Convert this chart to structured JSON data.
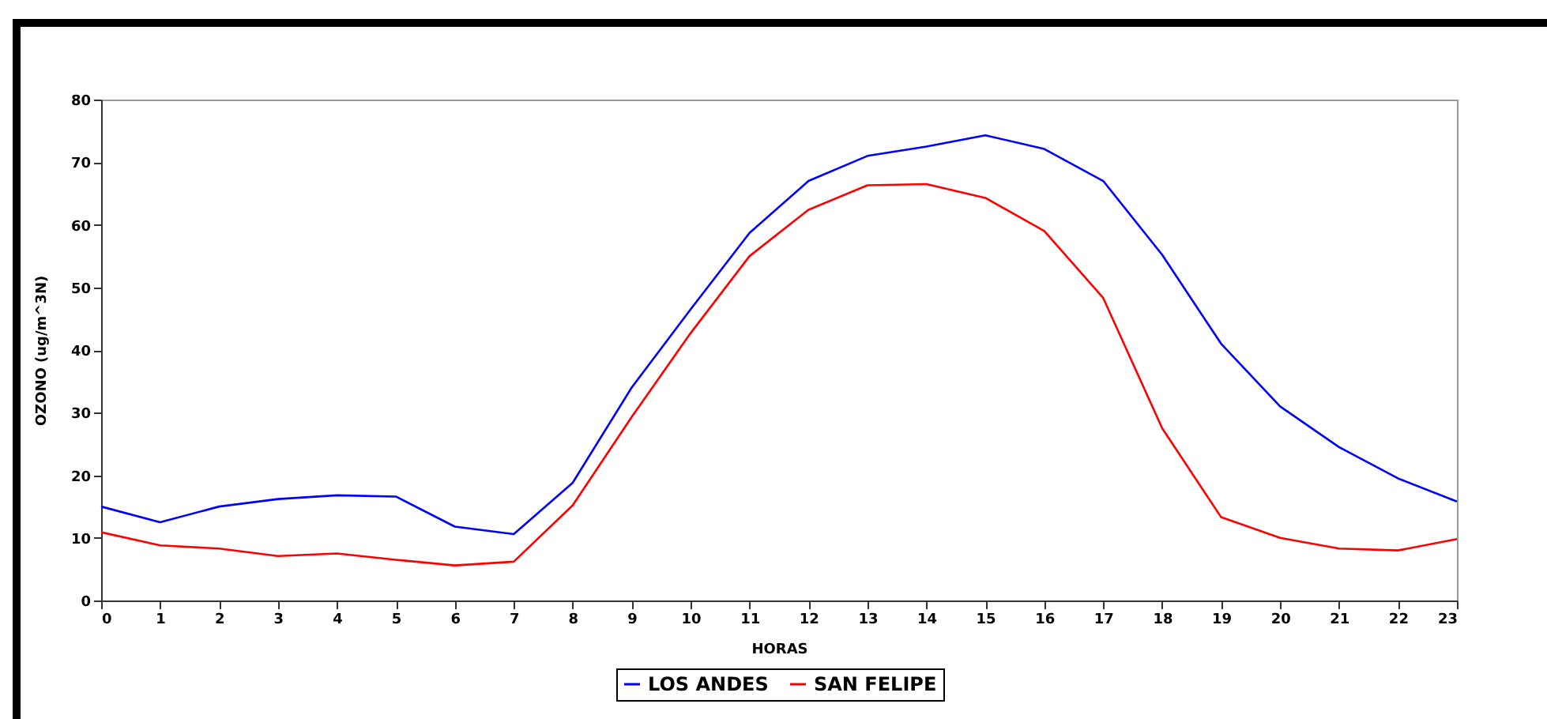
{
  "chart_data": {
    "type": "line",
    "xlabel": "HORAS",
    "ylabel": "OZONO  (ug/m^3N)",
    "x": [
      0,
      1,
      2,
      3,
      4,
      5,
      6,
      7,
      8,
      9,
      10,
      11,
      12,
      13,
      14,
      15,
      16,
      17,
      18,
      19,
      20,
      21,
      22,
      23
    ],
    "series": [
      {
        "name": "LOS ANDES",
        "color": "#0000ff",
        "values": [
          15,
          12.5,
          15,
          16.2,
          16.8,
          16.6,
          11.8,
          10.6,
          18.8,
          34,
          46.5,
          58.7,
          67,
          71,
          72.5,
          74.3,
          72.1,
          67,
          55.2,
          41,
          31,
          24.5,
          19.5,
          15.8
        ]
      },
      {
        "name": "SAN FELIPE",
        "color": "#ff0000",
        "values": [
          10.9,
          8.8,
          8.3,
          7.1,
          7.5,
          6.5,
          5.6,
          6.2,
          15.2,
          29.3,
          42.7,
          55,
          62.4,
          66.3,
          66.5,
          64.3,
          59,
          48.3,
          27.5,
          13.3,
          10,
          8.3,
          8,
          9.8
        ]
      }
    ],
    "xlim": [
      0,
      23
    ],
    "xticks": [
      0,
      1,
      2,
      3,
      4,
      5,
      6,
      7,
      8,
      9,
      10,
      11,
      12,
      13,
      14,
      15,
      16,
      17,
      18,
      19,
      20,
      21,
      22,
      23
    ],
    "ylim": [
      0,
      80
    ],
    "yticks": [
      0,
      10,
      20,
      30,
      40,
      50,
      60,
      70,
      80
    ],
    "grid": false,
    "legend": "bottom",
    "marker": "none",
    "line_style": "solid"
  }
}
